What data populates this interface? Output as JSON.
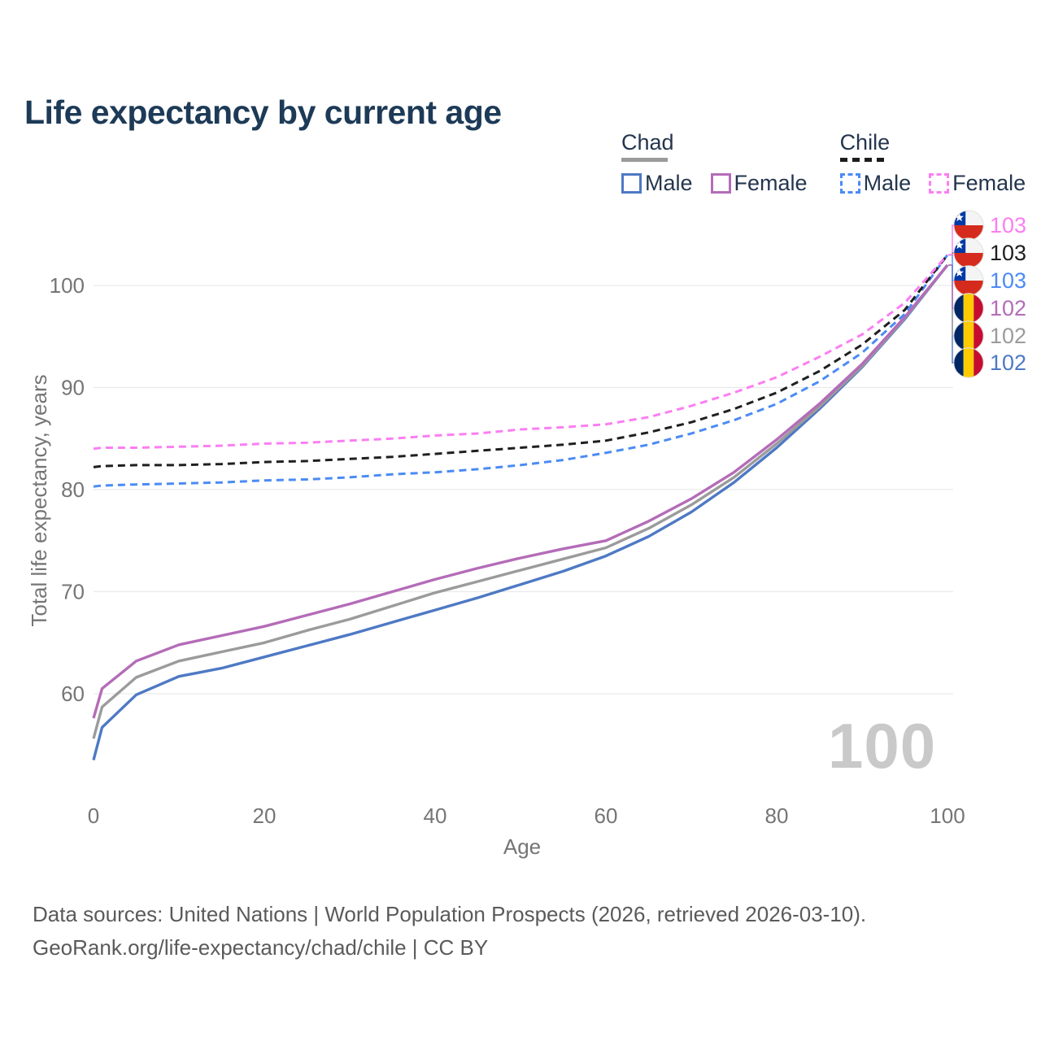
{
  "title": "Life expectancy by current age",
  "watermark": "100",
  "legend": {
    "groups": [
      {
        "label": "Chad",
        "line_style": "solid",
        "swatch_color": "#9a9a9a",
        "items": [
          {
            "label": "Male",
            "color": "#4e79c4",
            "box_style": "solid"
          },
          {
            "label": "Female",
            "color": "#b46cb8",
            "box_style": "solid"
          }
        ]
      },
      {
        "label": "Chile",
        "line_style": "dashed",
        "swatch_color": "#1c1c1c",
        "items": [
          {
            "label": "Male",
            "color": "#4b8bf4",
            "box_style": "dashed"
          },
          {
            "label": "Female",
            "color": "#fb7ef2",
            "box_style": "dashed"
          }
        ]
      }
    ]
  },
  "footer": {
    "line1": "Data sources: United Nations | World Population Prospects (2026, retrieved 2026-03-10).",
    "line2": "GeoRank.org/life-expectancy/chad/chile | CC BY"
  },
  "chart_data": {
    "type": "line",
    "title": "Life expectancy by current age",
    "xlabel": "Age",
    "ylabel": "Total life expectancy, years",
    "xlim": [
      0,
      100
    ],
    "ylim": [
      52,
      104
    ],
    "x_ticks": [
      0,
      20,
      40,
      60,
      80,
      100
    ],
    "y_ticks": [
      60,
      70,
      80,
      90,
      100
    ],
    "grid": true,
    "legend_position": "top-right",
    "x": [
      0,
      1,
      5,
      10,
      15,
      20,
      25,
      30,
      35,
      40,
      45,
      50,
      55,
      60,
      65,
      70,
      75,
      80,
      85,
      90,
      95,
      100
    ],
    "series": [
      {
        "id": "chad-male",
        "name": "Chad Male",
        "country": "Chad",
        "sex": "Male",
        "color": "#4e79c4",
        "dash": "solid",
        "flag": "chad",
        "end_label": "102",
        "label_row": 5,
        "values": [
          53.5,
          56.7,
          59.9,
          61.7,
          62.5,
          63.6,
          64.7,
          65.8,
          67.0,
          68.2,
          69.4,
          70.7,
          72.0,
          73.5,
          75.4,
          77.8,
          80.7,
          84.1,
          87.9,
          92.0,
          96.7,
          102
        ]
      },
      {
        "id": "chad-both",
        "name": "Chad Both sexes",
        "country": "Chad",
        "sex": "Both",
        "color": "#9b9b9b",
        "dash": "solid",
        "flag": "chad",
        "end_label": "102",
        "label_row": 4,
        "values": [
          55.6,
          58.7,
          61.6,
          63.2,
          64.1,
          65.0,
          66.2,
          67.3,
          68.6,
          69.9,
          71.0,
          72.1,
          73.2,
          74.3,
          76.2,
          78.5,
          81.2,
          84.5,
          88.1,
          92.1,
          96.8,
          102
        ]
      },
      {
        "id": "chad-female",
        "name": "Chad Female",
        "country": "Chad",
        "sex": "Female",
        "color": "#b46cb8",
        "dash": "solid",
        "flag": "chad",
        "end_label": "102",
        "label_row": 3,
        "values": [
          57.6,
          60.5,
          63.2,
          64.8,
          65.7,
          66.6,
          67.7,
          68.8,
          70.0,
          71.2,
          72.3,
          73.3,
          74.2,
          75.0,
          76.9,
          79.1,
          81.7,
          84.9,
          88.4,
          92.3,
          96.9,
          102
        ]
      },
      {
        "id": "chile-male",
        "name": "Chile Male",
        "country": "Chile",
        "sex": "Male",
        "color": "#4b8bf4",
        "dash": "dashed",
        "flag": "chile",
        "end_label": "103",
        "label_row": 2,
        "values": [
          80.3,
          80.4,
          80.5,
          80.6,
          80.7,
          80.9,
          81.0,
          81.2,
          81.5,
          81.7,
          82.0,
          82.4,
          82.9,
          83.6,
          84.4,
          85.5,
          86.8,
          88.4,
          90.6,
          93.4,
          97.2,
          103
        ]
      },
      {
        "id": "chile-both",
        "name": "Chile Both sexes",
        "country": "Chile",
        "sex": "Both",
        "color": "#1f1f1f",
        "dash": "dashed",
        "flag": "chile",
        "end_label": "103",
        "label_row": 1,
        "values": [
          82.2,
          82.3,
          82.4,
          82.4,
          82.5,
          82.7,
          82.8,
          83.0,
          83.2,
          83.5,
          83.8,
          84.1,
          84.4,
          84.8,
          85.6,
          86.6,
          87.9,
          89.5,
          91.6,
          94.2,
          97.6,
          103
        ]
      },
      {
        "id": "chile-female",
        "name": "Chile Female",
        "country": "Chile",
        "sex": "Female",
        "color": "#fb7ef2",
        "dash": "dashed",
        "flag": "chile",
        "end_label": "103",
        "label_row": 0,
        "values": [
          84.0,
          84.1,
          84.1,
          84.2,
          84.3,
          84.5,
          84.6,
          84.8,
          85.0,
          85.3,
          85.5,
          85.9,
          86.1,
          86.4,
          87.1,
          88.2,
          89.5,
          91.0,
          93.0,
          95.2,
          98.3,
          103
        ]
      }
    ]
  }
}
